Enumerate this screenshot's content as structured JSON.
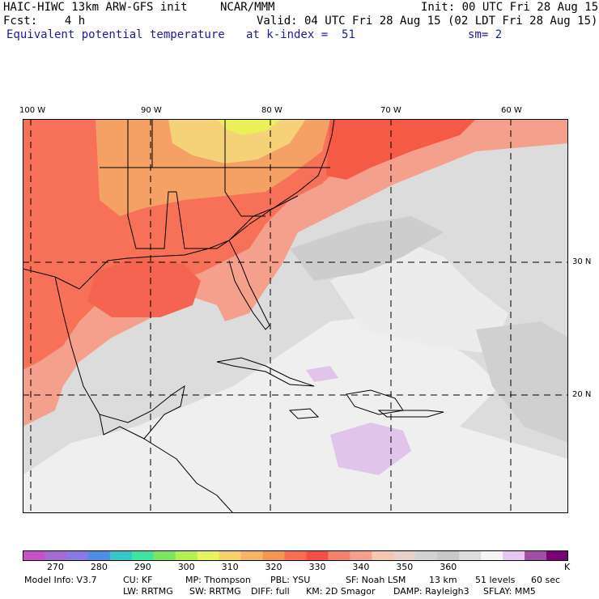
{
  "header": {
    "model": "HAIC-HIWC 13km ARW-GFS init",
    "org": "NCAR/MMM",
    "init": "Init: 00 UTC Fri 28 Aug 15",
    "fcst": "Fcst:    4 h",
    "valid": "Valid: 04 UTC Fri 28 Aug 15 (02 LDT Fri 28 Aug 15)",
    "field": "Equivalent potential temperature",
    "level": "at k-index =  51",
    "smooth": "sm= 2"
  },
  "axes": {
    "lon_labels": [
      "100 W",
      "90 W",
      "80 W",
      "70 W",
      "60 W"
    ],
    "lat_labels": [
      "30 N",
      "20 N"
    ]
  },
  "colorbar": {
    "colors": [
      "#c850c8",
      "#a46ad2",
      "#8a78e6",
      "#4c8ee6",
      "#32c8c8",
      "#3ce6a0",
      "#7ee65a",
      "#b4f050",
      "#e6f55a",
      "#f5d264",
      "#f7b464",
      "#f59650",
      "#f76e50",
      "#f55046",
      "#f5826e",
      "#f5a08c",
      "#f5c8b4",
      "#e6d2c8",
      "#d2d2d2",
      "#c8c8c8",
      "#dcdcdc",
      "#f5f5f5",
      "#e6c8f0",
      "#a050a0",
      "#780078"
    ],
    "tick_labels": [
      "270",
      "280",
      "290",
      "300",
      "310",
      "320",
      "330",
      "340",
      "350",
      "360"
    ],
    "units": "K"
  },
  "info": {
    "line1": [
      "Model Info: V3.7",
      "CU: KF",
      "MP: Thompson",
      "PBL: YSU",
      "SF: Noah LSM",
      "13 km",
      "51 levels",
      "60 sec"
    ],
    "line2": [
      "LW: RRTMG",
      "SW: RRTMG",
      "DIFF: full",
      "KM: 2D Smagor",
      "DAMP: Rayleigh3",
      "SFLAY: MM5"
    ]
  }
}
